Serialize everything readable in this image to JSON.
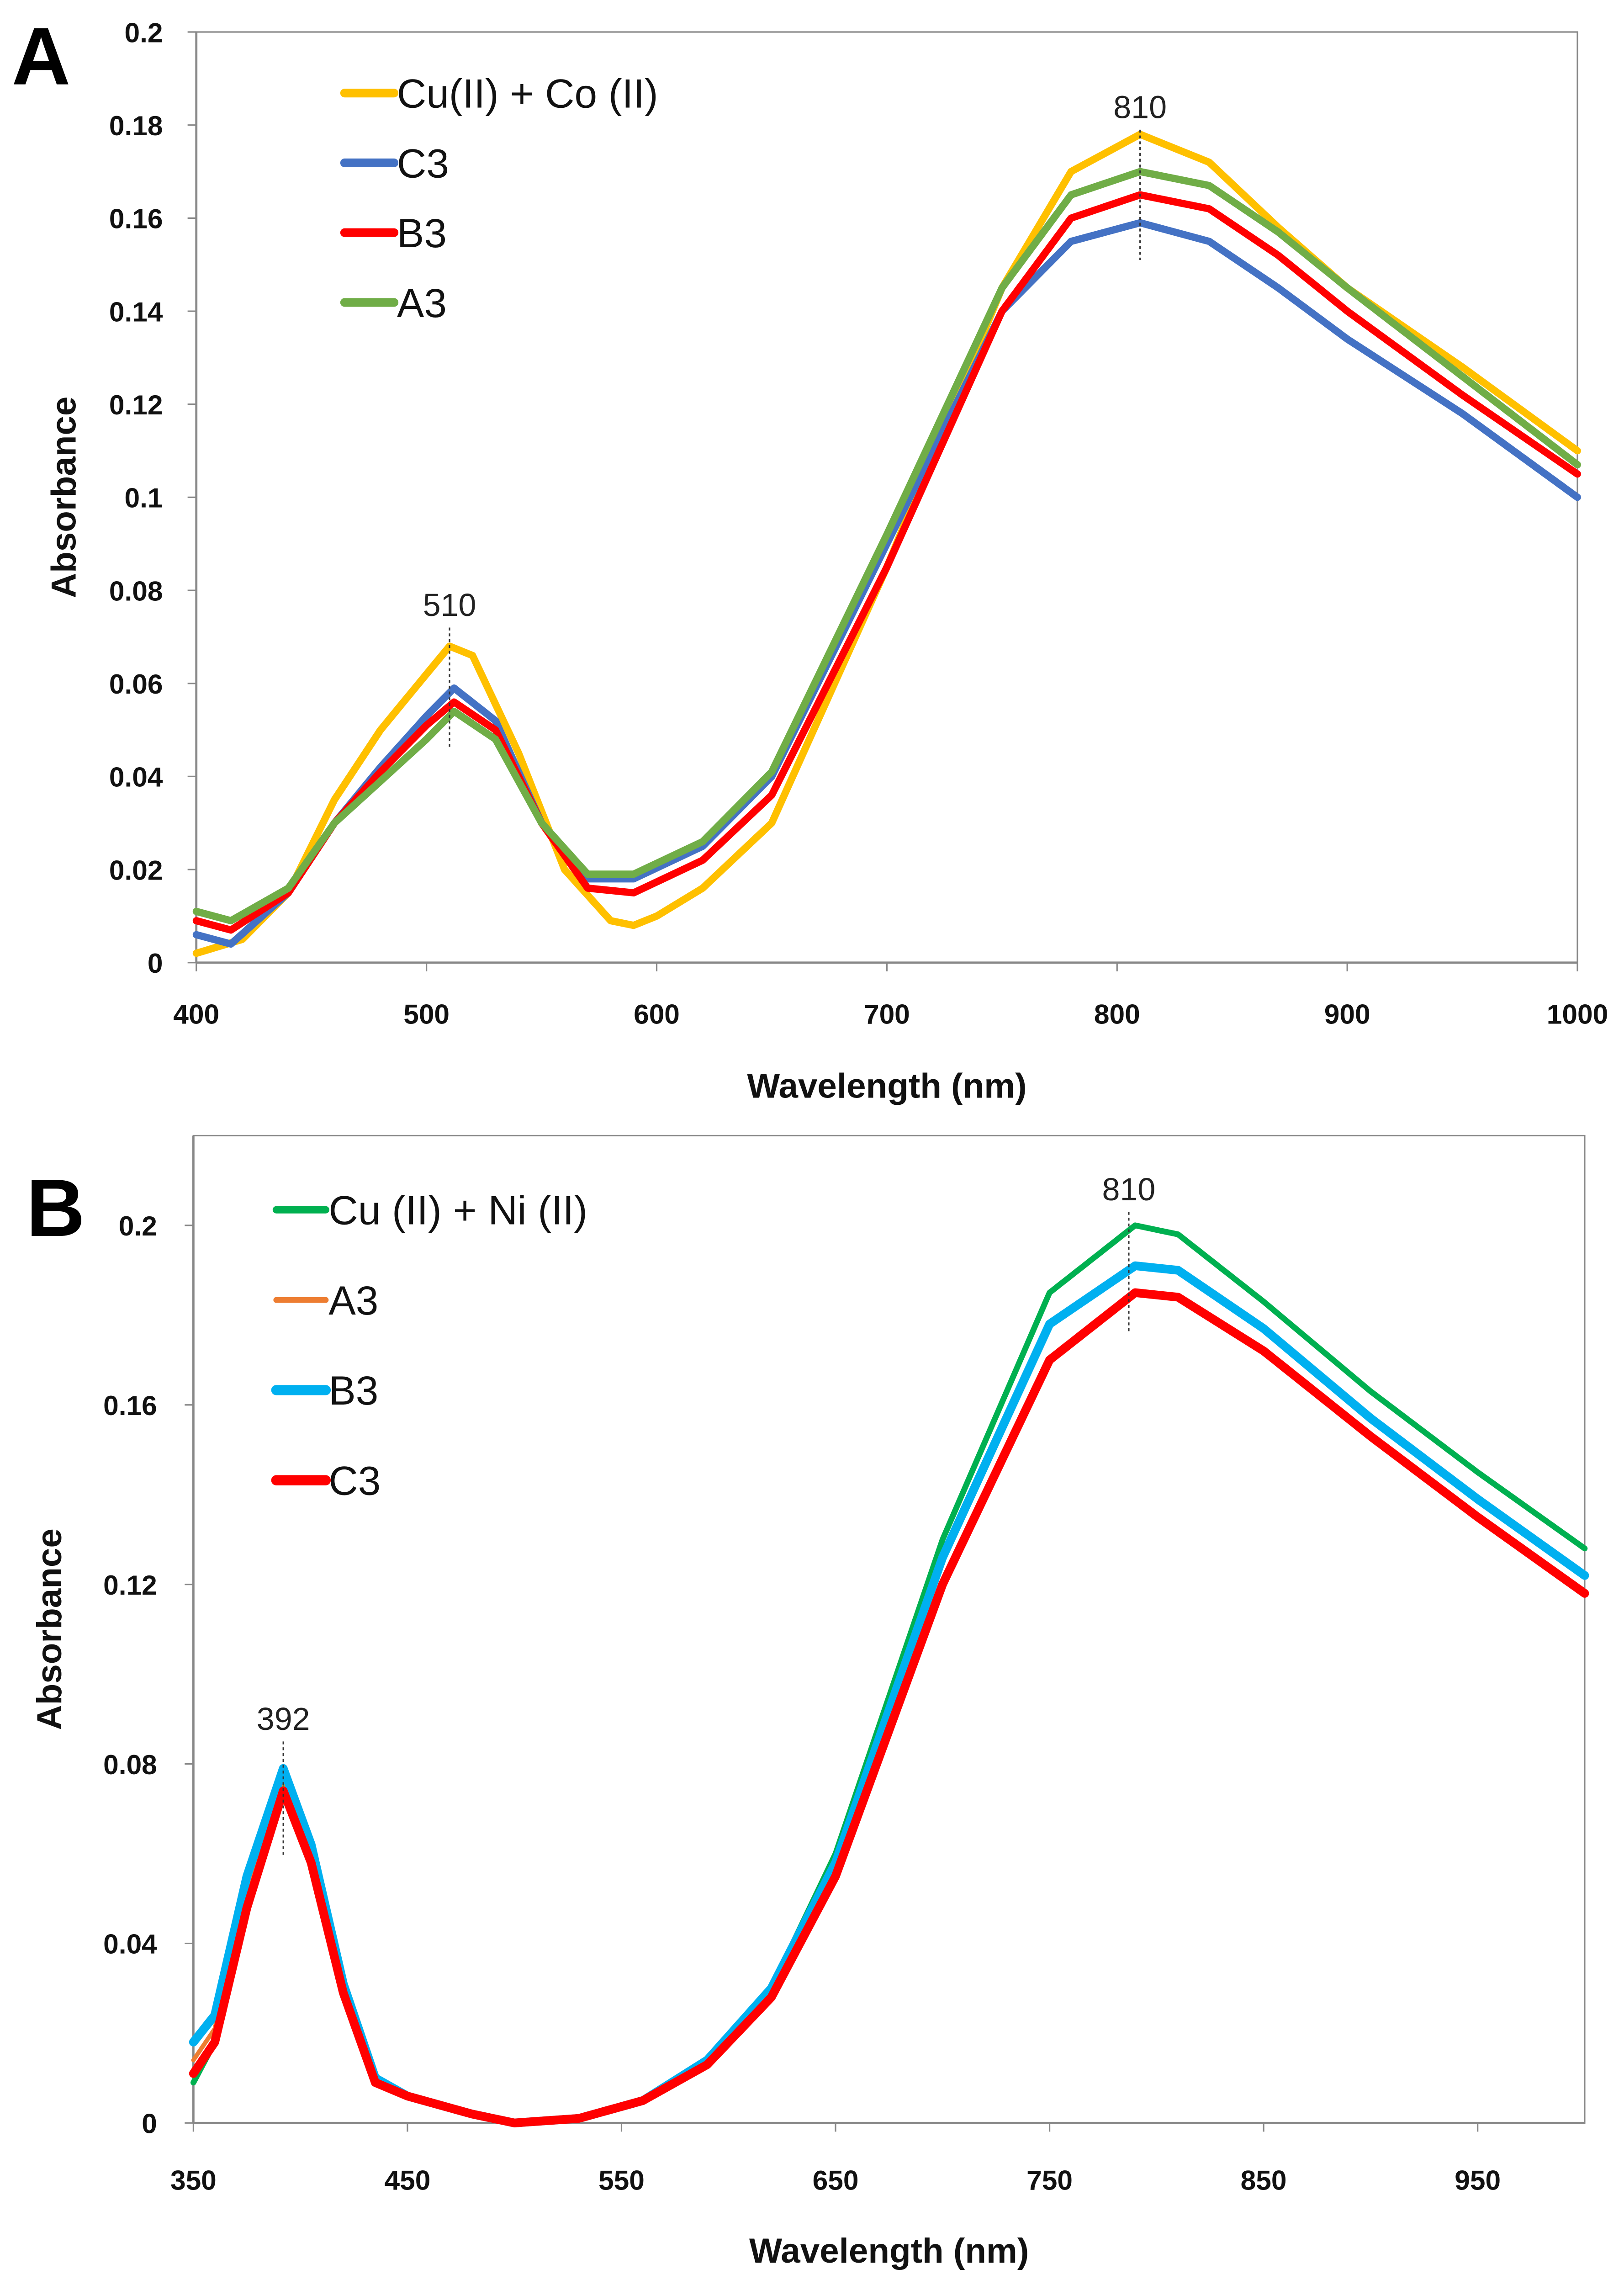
{
  "chart_data": [
    {
      "type": "line",
      "panel_label": "A",
      "xlabel": "Wavelength (nm)",
      "ylabel": "Absorbance",
      "xlim": [
        400,
        1000
      ],
      "ylim": [
        0,
        0.2
      ],
      "xticks": [
        400,
        500,
        600,
        700,
        800,
        900,
        1000
      ],
      "xtick_labels": [
        "400",
        "500",
        "600",
        "700",
        "800",
        "900",
        "1000"
      ],
      "yticks": [
        0,
        0.02,
        0.04,
        0.06,
        0.08,
        0.1,
        0.12,
        0.14,
        0.16,
        0.18,
        0.2
      ],
      "ytick_labels": [
        "0",
        "0.02",
        "0.04",
        "0.06",
        "0.08",
        "0.1",
        "0.12",
        "0.14",
        "0.16",
        "0.18",
        "0.2"
      ],
      "legend_position": "top-left",
      "annotations": [
        {
          "text": "510",
          "x": 510,
          "y_range": [
            0.046,
            0.072
          ]
        },
        {
          "text": "810",
          "x": 810,
          "y_range": [
            0.151,
            0.179
          ]
        }
      ],
      "series": [
        {
          "name": "Cu(II) + Co (II)",
          "color": "#FFC000",
          "width": 5,
          "x": [
            400,
            420,
            440,
            460,
            480,
            500,
            510,
            520,
            540,
            560,
            580,
            590,
            600,
            620,
            650,
            700,
            750,
            780,
            810,
            840,
            870,
            900,
            950,
            1000
          ],
          "y": [
            0.002,
            0.005,
            0.015,
            0.035,
            0.05,
            0.062,
            0.068,
            0.066,
            0.045,
            0.02,
            0.009,
            0.008,
            0.01,
            0.016,
            0.03,
            0.085,
            0.145,
            0.17,
            0.178,
            0.172,
            0.158,
            0.145,
            0.128,
            0.11
          ]
        },
        {
          "name": "C3",
          "color": "#4472C4",
          "width": 5,
          "x": [
            400,
            415,
            440,
            460,
            480,
            500,
            512,
            530,
            550,
            570,
            590,
            620,
            650,
            700,
            750,
            780,
            810,
            840,
            870,
            900,
            950,
            1000
          ],
          "y": [
            0.006,
            0.004,
            0.015,
            0.03,
            0.042,
            0.053,
            0.059,
            0.052,
            0.03,
            0.018,
            0.018,
            0.025,
            0.04,
            0.09,
            0.14,
            0.155,
            0.159,
            0.155,
            0.145,
            0.134,
            0.118,
            0.1
          ]
        },
        {
          "name": "B3",
          "color": "#FF0000",
          "width": 5,
          "x": [
            400,
            415,
            440,
            460,
            480,
            500,
            512,
            530,
            550,
            570,
            590,
            620,
            650,
            700,
            750,
            780,
            810,
            840,
            870,
            900,
            950,
            1000
          ],
          "y": [
            0.009,
            0.007,
            0.015,
            0.03,
            0.041,
            0.051,
            0.056,
            0.05,
            0.03,
            0.016,
            0.015,
            0.022,
            0.036,
            0.085,
            0.14,
            0.16,
            0.165,
            0.162,
            0.152,
            0.14,
            0.122,
            0.105
          ]
        },
        {
          "name": "A3",
          "color": "#70AD47",
          "width": 5,
          "x": [
            400,
            415,
            440,
            460,
            480,
            500,
            512,
            530,
            550,
            570,
            590,
            620,
            650,
            700,
            750,
            780,
            810,
            840,
            870,
            900,
            950,
            1000
          ],
          "y": [
            0.011,
            0.009,
            0.016,
            0.03,
            0.039,
            0.048,
            0.054,
            0.048,
            0.03,
            0.019,
            0.019,
            0.026,
            0.041,
            0.092,
            0.145,
            0.165,
            0.17,
            0.167,
            0.157,
            0.145,
            0.126,
            0.107
          ]
        }
      ]
    },
    {
      "type": "line",
      "panel_label": "B",
      "xlabel": "Wavelength (nm)",
      "ylabel": "Absorbance",
      "xlim": [
        350,
        1000
      ],
      "ylim": [
        0,
        0.22
      ],
      "xticks": [
        350,
        450,
        550,
        650,
        750,
        850,
        950
      ],
      "xtick_labels": [
        "350",
        "450",
        "550",
        "650",
        "750",
        "850",
        "950"
      ],
      "yticks": [
        0,
        0.04,
        0.08,
        0.12,
        0.16,
        0.2
      ],
      "ytick_labels": [
        "0",
        "0.04",
        "0.08",
        "0.12",
        "0.16",
        "0.2"
      ],
      "legend_position": "top-left",
      "annotations": [
        {
          "text": "392",
          "x": 392,
          "y_range": [
            0.059,
            0.085
          ]
        },
        {
          "text": "810",
          "x": 787,
          "y_range": [
            0.176,
            0.203
          ]
        }
      ],
      "series": [
        {
          "name": "Cu (II) + Ni (II)",
          "color": "#00B050",
          "width": 4,
          "x": [
            350,
            360,
            375,
            392,
            405,
            420,
            435,
            450,
            480,
            500,
            530,
            560,
            590,
            620,
            650,
            700,
            750,
            790,
            810,
            850,
            900,
            950,
            1000
          ],
          "y": [
            0.009,
            0.018,
            0.05,
            0.077,
            0.06,
            0.03,
            0.01,
            0.006,
            0.002,
            0,
            0.001,
            0.005,
            0.014,
            0.03,
            0.06,
            0.13,
            0.185,
            0.2,
            0.198,
            0.183,
            0.163,
            0.145,
            0.128
          ]
        },
        {
          "name": "A3",
          "color": "#ED7D31",
          "width": 3,
          "x": [
            350,
            360,
            375,
            392,
            405,
            420,
            435,
            450,
            480,
            500,
            530,
            560,
            590,
            620,
            650,
            700,
            750,
            790,
            810,
            850,
            900,
            950,
            1000
          ],
          "y": [
            0.014,
            0.021,
            0.052,
            0.077,
            0.06,
            0.03,
            0.01,
            0.006,
            0.002,
            0,
            0.001,
            0.005,
            0.014,
            0.03,
            0.058,
            0.126,
            0.178,
            0.191,
            0.19,
            0.177,
            0.157,
            0.139,
            0.122
          ]
        },
        {
          "name": "B3",
          "color": "#00B0F0",
          "width": 6,
          "x": [
            350,
            360,
            375,
            392,
            405,
            420,
            435,
            450,
            480,
            500,
            530,
            560,
            590,
            620,
            650,
            700,
            750,
            790,
            810,
            850,
            900,
            950,
            1000
          ],
          "y": [
            0.018,
            0.024,
            0.055,
            0.079,
            0.062,
            0.031,
            0.01,
            0.006,
            0.002,
            0,
            0.001,
            0.005,
            0.014,
            0.03,
            0.058,
            0.126,
            0.178,
            0.191,
            0.19,
            0.177,
            0.157,
            0.139,
            0.122
          ]
        },
        {
          "name": "C3",
          "color": "#FF0000",
          "width": 6,
          "x": [
            350,
            360,
            375,
            392,
            405,
            420,
            435,
            450,
            480,
            500,
            530,
            560,
            590,
            620,
            650,
            700,
            750,
            790,
            810,
            850,
            900,
            950,
            1000
          ],
          "y": [
            0.011,
            0.018,
            0.048,
            0.074,
            0.058,
            0.029,
            0.009,
            0.006,
            0.002,
            0,
            0.001,
            0.005,
            0.013,
            0.028,
            0.055,
            0.12,
            0.17,
            0.185,
            0.184,
            0.172,
            0.153,
            0.135,
            0.118
          ]
        }
      ]
    }
  ]
}
